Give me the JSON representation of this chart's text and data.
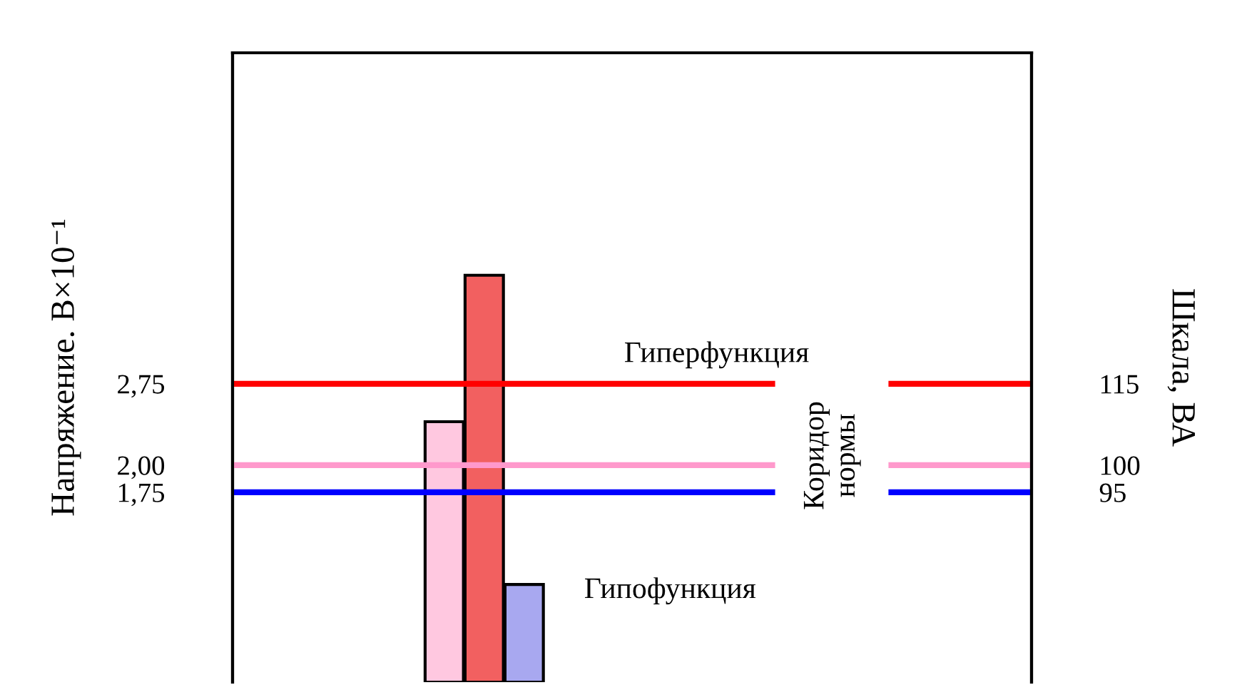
{
  "chart_data": {
    "type": "bar",
    "categories": [
      null
    ],
    "series": [
      {
        "color": "#ffc8e0",
        "values": [
          2.4
        ]
      },
      {
        "color": "#f26060",
        "values": [
          3.75
        ]
      },
      {
        "color": "#a8a8f0",
        "values": [
          0.9
        ]
      }
    ],
    "ylabel": "Напряжение. В×10⁻¹",
    "y2label": "Шкала, ВА",
    "ylim": [
      0,
      5.8
    ],
    "yticks": [
      {
        "value": 1.75,
        "label": "1,75"
      },
      {
        "value": 2.0,
        "label": "2,00"
      },
      {
        "value": 2.75,
        "label": "2,75"
      }
    ],
    "y2lim": [
      60,
      176
    ],
    "y2ticks": [
      95,
      100,
      115
    ],
    "ref_lines": [
      {
        "axis": "y",
        "value": 2.75,
        "color": "#ff0000"
      },
      {
        "axis": "y",
        "value": 2.0,
        "color": "#ff99cc"
      },
      {
        "axis": "y",
        "value": 1.75,
        "color": "#0000ff"
      }
    ],
    "annotations": [
      "Гиперфункция",
      "Гипофункция",
      "Коридор\nнормы"
    ],
    "grid": false,
    "legend": false
  }
}
